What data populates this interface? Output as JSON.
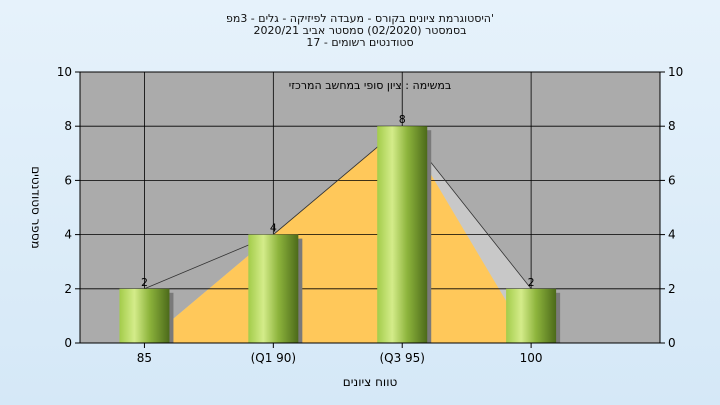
{
  "header": {
    "title_line1": "היסטוגרמת ציונים בקורס - מעבדה לפיזיקה - גלים - 3מפ'",
    "title_line2": "בסמסטר  (02/2020)  סמסטר אביב 2020/21",
    "title_line3": "סטודנטים רשומים - 17"
  },
  "chart_data": {
    "type": "bar",
    "categories": [
      "85",
      "(Q1 90)",
      "(Q3 95)",
      "100"
    ],
    "values": [
      2,
      4,
      8,
      2
    ],
    "annotation": "במשימה : ציון סופי במחשב המרכזי",
    "xlabel": "טווח ציונים",
    "ylabel": "מספר סטודנטים",
    "ylim": [
      0,
      10
    ],
    "yticks": [
      0,
      2,
      4,
      6,
      8,
      10
    ],
    "grid": true,
    "right_axis": true,
    "background_areas": [
      {
        "color": "#c8c8c8",
        "values": [
          0,
          4,
          8,
          2
        ]
      },
      {
        "color": "#ffc85a",
        "values": [
          0,
          4,
          8,
          0
        ]
      }
    ],
    "colors": {
      "plot_bg": "#ababab",
      "bar_light": "#d4ec8a",
      "bar_dark": "#4c6a1a",
      "ink": "#000000"
    }
  }
}
